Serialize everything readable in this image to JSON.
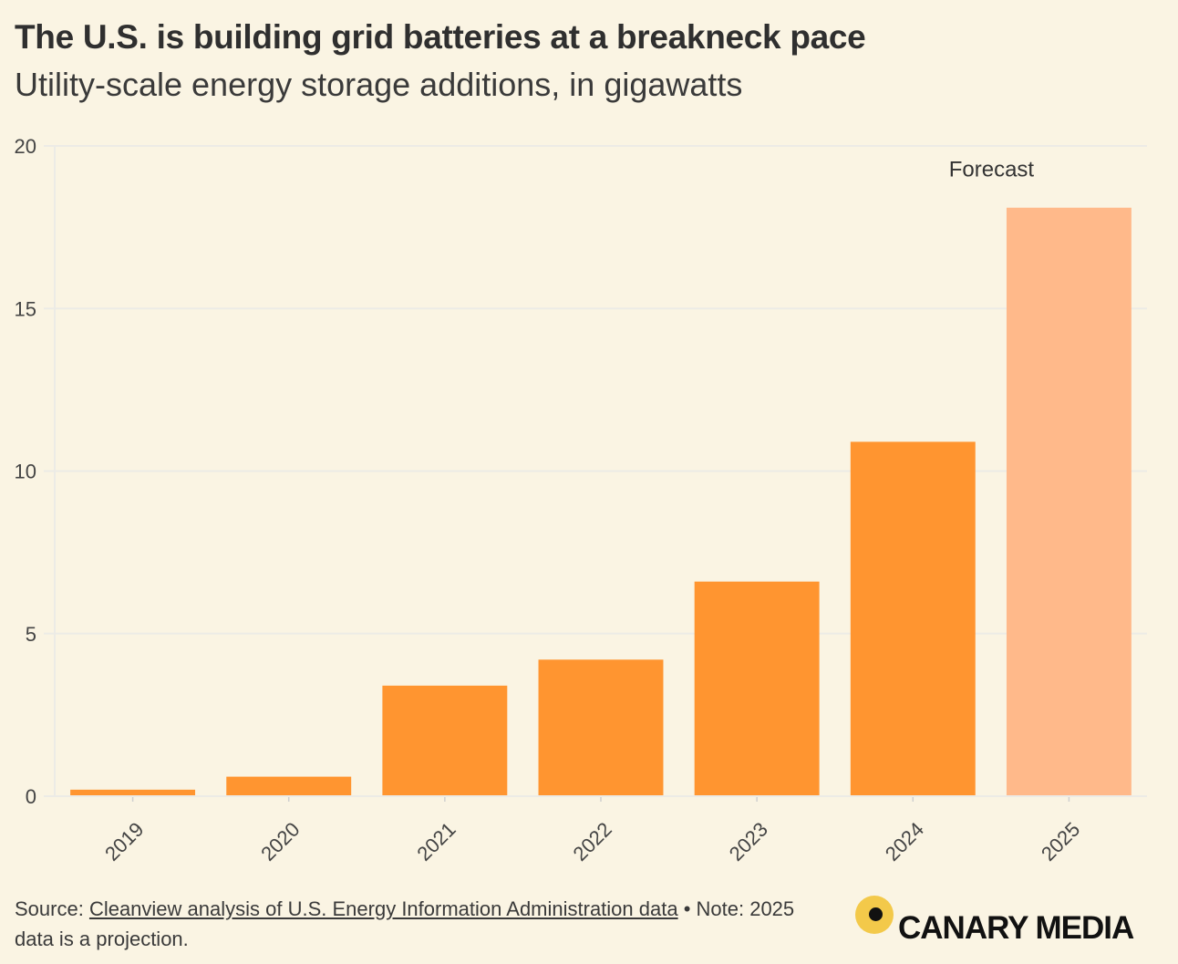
{
  "header": {
    "title": "The U.S. is building grid batteries at a breakneck pace",
    "subtitle": "Utility-scale energy storage additions, in gigawatts"
  },
  "footer": {
    "source_prefix": "Source: ",
    "source_link": "Cleanview analysis of U.S. Energy Information Administration data",
    "note": " • Note: 2025 data is a projection."
  },
  "logo": {
    "text": "CANARY MEDIA",
    "circle_color": "#f3c94a"
  },
  "colors": {
    "bar": "#ff9530",
    "forecast_bar": "#ffb98a",
    "grid": "#ecebe6",
    "background": "#faf4e3"
  },
  "chart_data": {
    "type": "bar",
    "categories": [
      "2019",
      "2020",
      "2021",
      "2022",
      "2023",
      "2024",
      "2025"
    ],
    "values": [
      0.2,
      0.6,
      3.4,
      4.2,
      6.6,
      10.9,
      18.1
    ],
    "forecast": [
      false,
      false,
      false,
      false,
      false,
      false,
      true
    ],
    "annotation": "Forecast",
    "title": "",
    "xlabel": "",
    "ylabel": "",
    "ylim": [
      0,
      20
    ],
    "yticks": [
      "0",
      "5",
      "10",
      "15",
      "20"
    ],
    "grid": true
  }
}
